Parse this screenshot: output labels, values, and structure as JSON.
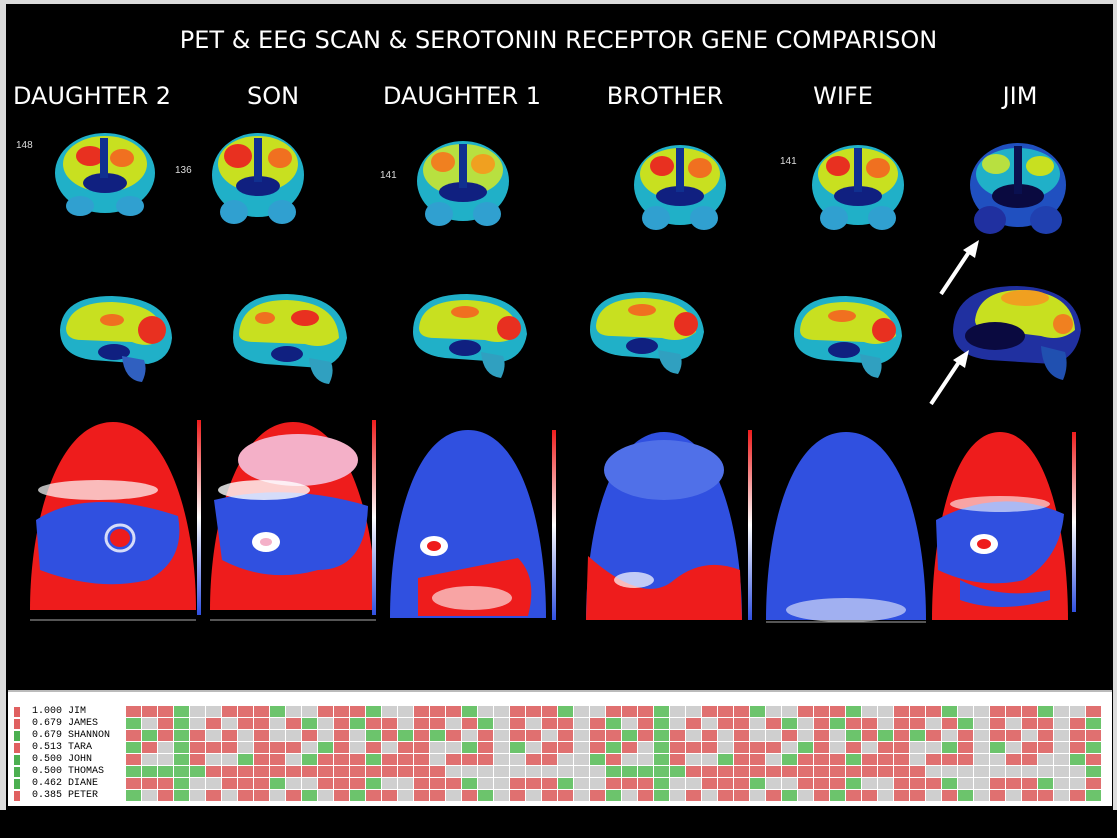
{
  "title": "PET & EEG SCAN & SEROTONIN RECEPTOR GENE COMPARISON",
  "columns": [
    {
      "label": "DAUGHTER 2",
      "pet_number": "148"
    },
    {
      "label": "SON",
      "pet_number": "136"
    },
    {
      "label": "DAUGHTER 1",
      "pet_number": "141"
    },
    {
      "label": "BROTHER",
      "pet_number": ""
    },
    {
      "label": "WIFE",
      "pet_number": "141"
    },
    {
      "label": "JIM",
      "pet_number": ""
    }
  ],
  "gene_rows": [
    {
      "score": "1.000",
      "name": "JIM",
      "marker": "#e06060"
    },
    {
      "score": "0.679",
      "name": "JAMES",
      "marker": "#e06060"
    },
    {
      "score": "0.679",
      "name": "SHANNON",
      "marker": "#4caf50"
    },
    {
      "score": "0.513",
      "name": "TARA",
      "marker": "#e06060"
    },
    {
      "score": "0.500",
      "name": "JOHN",
      "marker": "#4caf50"
    },
    {
      "score": "0.500",
      "name": "THOMAS",
      "marker": "#4caf50"
    },
    {
      "score": "0.462",
      "name": "DIANE",
      "marker": "#4caf50"
    },
    {
      "score": "0.385",
      "name": "PETER",
      "marker": "#e06060"
    }
  ],
  "colors": {
    "pet_hot": "#e83020",
    "pet_mid": "#d8e020",
    "pet_low": "#20c0c0",
    "pet_deep": "#2030a0",
    "eeg_red": "#ee1c1c",
    "eeg_blue": "#3050e0",
    "gene_red": "#e07070",
    "gene_green": "#6cc46c",
    "gene_gray": "#cfcfcf"
  }
}
